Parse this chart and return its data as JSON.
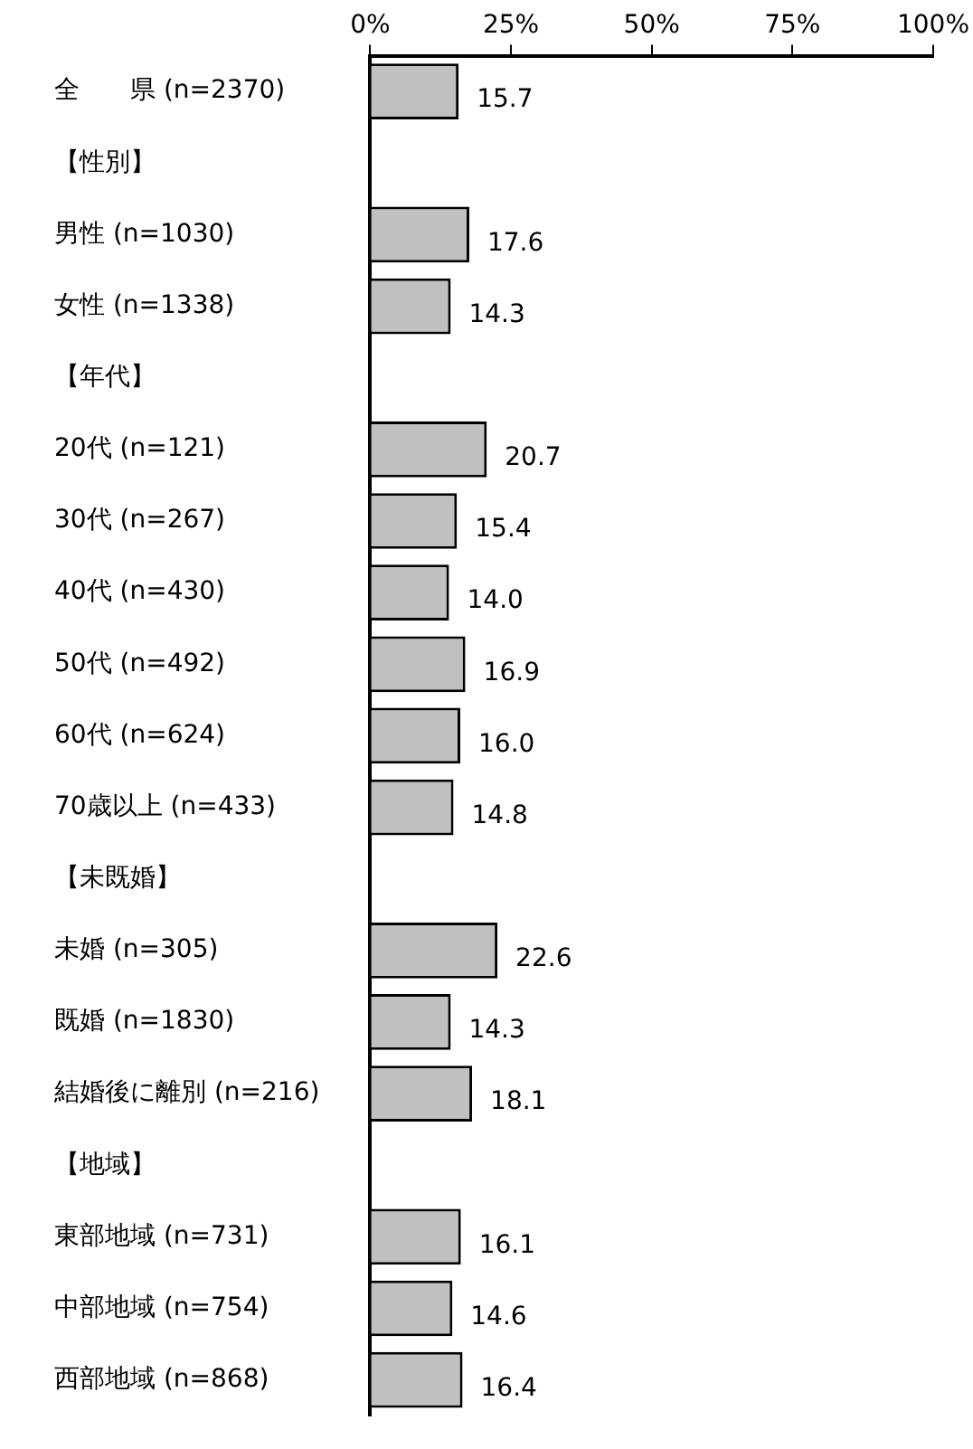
{
  "chart_data": {
    "type": "bar",
    "orientation": "horizontal",
    "categories": [
      "全　　県 (n=2370)",
      "【性別】",
      "男性 (n=1030)",
      "女性 (n=1338)",
      "【年代】",
      "20代 (n=121)",
      "30代 (n=267)",
      "40代 (n=430)",
      "50代 (n=492)",
      "60代 (n=624)",
      "70歳以上 (n=433)",
      "【未既婚】",
      "未婚 (n=305)",
      "既婚 (n=1830)",
      "結婚後に離別 (n=216)",
      "【地域】",
      "東部地域 (n=731)",
      "中部地域 (n=754)",
      "西部地域 (n=868)"
    ],
    "values": [
      15.7,
      null,
      17.6,
      14.3,
      null,
      20.7,
      15.4,
      14.0,
      16.9,
      16.0,
      14.8,
      null,
      22.6,
      14.3,
      18.1,
      null,
      16.1,
      14.6,
      16.4
    ],
    "value_labels": [
      "15.7",
      null,
      "17.6",
      "14.3",
      null,
      "20.7",
      "15.4",
      "14.0",
      "16.9",
      "16.0",
      "14.8",
      null,
      "22.6",
      "14.3",
      "18.1",
      null,
      "16.1",
      "14.6",
      "16.4"
    ],
    "color": "#c0c0c0",
    "xlim": [
      0,
      100
    ],
    "xticks": [
      {
        "value": 0,
        "label": "0%"
      },
      {
        "value": 25,
        "label": "25%"
      },
      {
        "value": 50,
        "label": "50%"
      },
      {
        "value": 75,
        "label": "75%"
      },
      {
        "value": 100,
        "label": "100%"
      }
    ],
    "grid": false,
    "legend": false
  }
}
